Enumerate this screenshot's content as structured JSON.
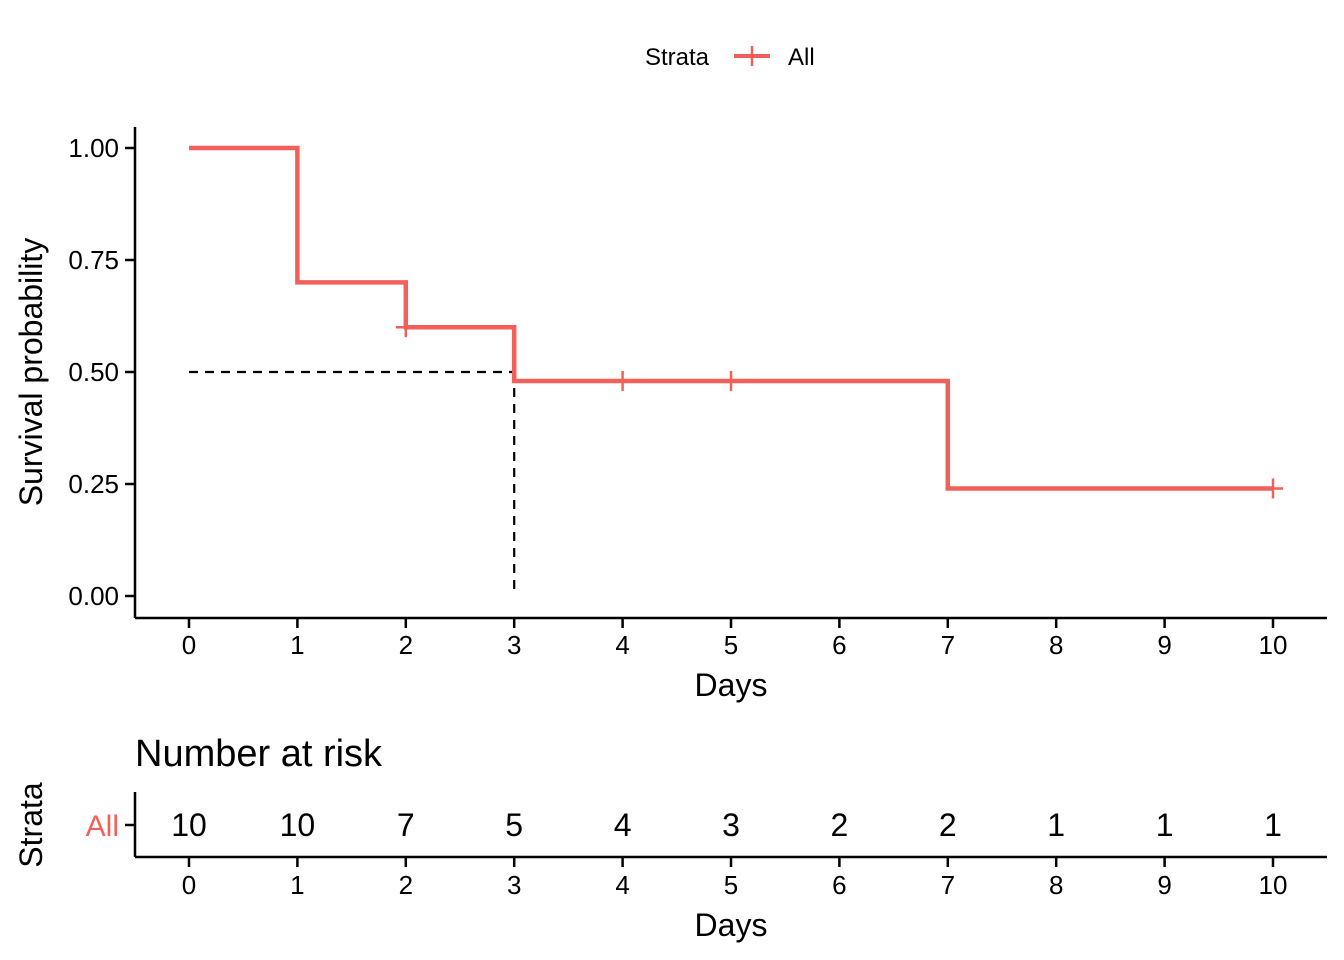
{
  "legend": {
    "title": "Strata",
    "label": "All",
    "color": "#f2605b"
  },
  "chart_data": [
    {
      "type": "line",
      "subtype": "kaplan-meier-step",
      "xlabel": "Days",
      "ylabel": "Survival probability",
      "xlim": [
        0,
        10
      ],
      "ylim": [
        0,
        1
      ],
      "x_ticks": [
        0,
        1,
        2,
        3,
        4,
        5,
        6,
        7,
        8,
        9,
        10
      ],
      "y_ticks": [
        0.0,
        0.25,
        0.5,
        0.75,
        1.0
      ],
      "y_tick_labels": [
        "0.00",
        "0.25",
        "0.50",
        "0.75",
        "1.00"
      ],
      "grid": false,
      "legend_position": "top",
      "series": [
        {
          "name": "All",
          "color": "#f2605b",
          "steps": [
            {
              "x": 0,
              "y": 1.0
            },
            {
              "x": 1,
              "y": 0.7
            },
            {
              "x": 2,
              "y": 0.6
            },
            {
              "x": 3,
              "y": 0.48
            },
            {
              "x": 7,
              "y": 0.24
            },
            {
              "x": 10,
              "y": 0.24
            }
          ],
          "censored": [
            {
              "x": 2,
              "y": 0.6
            },
            {
              "x": 4,
              "y": 0.48
            },
            {
              "x": 5,
              "y": 0.48
            },
            {
              "x": 10,
              "y": 0.24
            }
          ]
        }
      ],
      "median_survival": {
        "x": 3,
        "y": 0.5
      }
    },
    {
      "type": "table",
      "title": "Number at risk",
      "xlabel": "Days",
      "ylabel": "Strata",
      "x_ticks": [
        0,
        1,
        2,
        3,
        4,
        5,
        6,
        7,
        8,
        9,
        10
      ],
      "rows": [
        {
          "label": "All",
          "color": "#f2605b",
          "values": [
            10,
            10,
            7,
            5,
            4,
            3,
            2,
            2,
            1,
            1,
            1
          ]
        }
      ]
    }
  ]
}
